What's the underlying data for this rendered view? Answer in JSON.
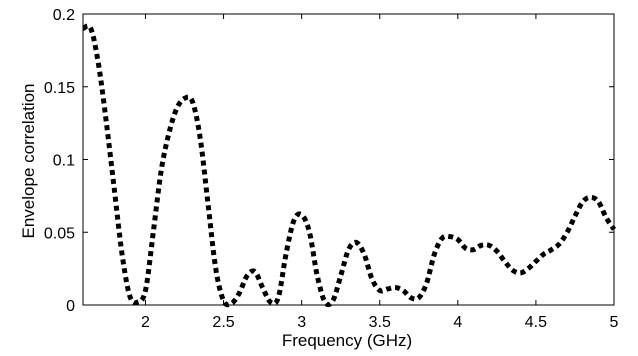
{
  "chart_data": {
    "type": "line",
    "title": "",
    "xlabel": "Frequency (GHz)",
    "ylabel": "Envelope correlation",
    "xlim": [
      1.6,
      5.0
    ],
    "ylim": [
      0,
      0.2
    ],
    "xticks": [
      2,
      2.5,
      3,
      3.5,
      4,
      4.5,
      5
    ],
    "xtick_labels": [
      "2",
      "2.5",
      "3",
      "3.5",
      "4",
      "4.5",
      "5"
    ],
    "yticks": [
      0,
      0.05,
      0.1,
      0.15,
      0.2
    ],
    "ytick_labels": [
      "0",
      "0.05",
      "0.1",
      "0.15",
      "0.2"
    ],
    "grid": false,
    "legend": false,
    "series": [
      {
        "line_style": "dotted",
        "color": "#000000",
        "x": [
          1.6,
          1.65,
          1.7,
          1.75,
          1.8,
          1.85,
          1.9,
          1.95,
          2.0,
          2.05,
          2.1,
          2.15,
          2.2,
          2.25,
          2.3,
          2.35,
          2.4,
          2.45,
          2.5,
          2.55,
          2.6,
          2.65,
          2.7,
          2.75,
          2.8,
          2.85,
          2.9,
          2.95,
          3.0,
          3.05,
          3.1,
          3.15,
          3.2,
          3.25,
          3.3,
          3.35,
          3.4,
          3.45,
          3.5,
          3.55,
          3.6,
          3.65,
          3.7,
          3.75,
          3.8,
          3.85,
          3.9,
          3.95,
          4.0,
          4.05,
          4.1,
          4.15,
          4.2,
          4.25,
          4.3,
          4.35,
          4.4,
          4.45,
          4.5,
          4.55,
          4.6,
          4.65,
          4.7,
          4.75,
          4.8,
          4.85,
          4.9,
          4.95,
          5.0
        ],
        "y": [
          0.19,
          0.19,
          0.165,
          0.125,
          0.08,
          0.035,
          0.006,
          0.002,
          0.01,
          0.05,
          0.092,
          0.118,
          0.135,
          0.142,
          0.14,
          0.115,
          0.07,
          0.025,
          0.003,
          0.001,
          0.008,
          0.02,
          0.023,
          0.012,
          0.002,
          0.005,
          0.035,
          0.058,
          0.062,
          0.05,
          0.02,
          0.002,
          0.003,
          0.02,
          0.038,
          0.043,
          0.035,
          0.018,
          0.01,
          0.011,
          0.012,
          0.01,
          0.005,
          0.005,
          0.015,
          0.035,
          0.046,
          0.047,
          0.045,
          0.039,
          0.038,
          0.041,
          0.041,
          0.037,
          0.03,
          0.024,
          0.022,
          0.025,
          0.03,
          0.035,
          0.038,
          0.042,
          0.05,
          0.061,
          0.071,
          0.074,
          0.071,
          0.06,
          0.052
        ]
      }
    ]
  }
}
